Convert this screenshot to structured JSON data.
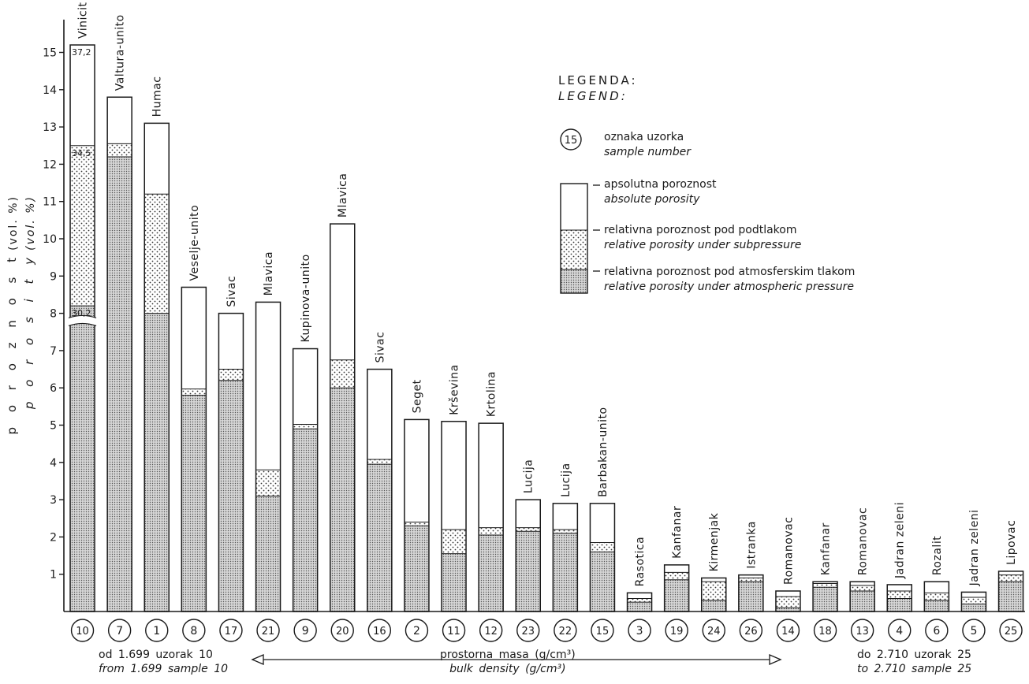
{
  "chart_data": {
    "type": "bar",
    "stacked": true,
    "ylim": [
      0,
      15.5
    ],
    "yticks": [
      1,
      2,
      3,
      4,
      5,
      6,
      7,
      8,
      9,
      10,
      11,
      12,
      13,
      14,
      15
    ],
    "ylabel_hr": "p o r o z n o s t",
    "ylabel_hr_unit": "(vol. %)",
    "ylabel_en": "p o r o s i t y",
    "ylabel_en_unit": "(vol. %)",
    "bars": [
      {
        "sample": "10",
        "name": "Vinicit",
        "atm": 8.2,
        "sub": 12.5,
        "abs": 15.2,
        "broken": true,
        "annot": [
          "37,2",
          "34,5",
          "30,2"
        ]
      },
      {
        "sample": "7",
        "name": "Valtura-unito",
        "atm": 12.2,
        "sub": 12.55,
        "abs": 13.8
      },
      {
        "sample": "1",
        "name": "Humac",
        "atm": 8.0,
        "sub": 11.2,
        "abs": 13.1
      },
      {
        "sample": "8",
        "name": "Veselje-unito",
        "atm": 5.8,
        "sub": 5.97,
        "abs": 8.7
      },
      {
        "sample": "17",
        "name": "Sivac",
        "atm": 6.2,
        "sub": 6.5,
        "abs": 8.0
      },
      {
        "sample": "21",
        "name": "Mlavica",
        "atm": 3.1,
        "sub": 3.8,
        "abs": 8.3
      },
      {
        "sample": "9",
        "name": "Kupinova-unito",
        "atm": 4.9,
        "sub": 5.02,
        "abs": 7.05
      },
      {
        "sample": "20",
        "name": "Mlavica",
        "atm": 6.0,
        "sub": 6.75,
        "abs": 10.4
      },
      {
        "sample": "16",
        "name": "Sivac",
        "atm": 3.95,
        "sub": 4.08,
        "abs": 6.5
      },
      {
        "sample": "2",
        "name": "Seget",
        "atm": 2.3,
        "sub": 2.4,
        "abs": 5.15
      },
      {
        "sample": "11",
        "name": "Krševina",
        "atm": 1.55,
        "sub": 2.2,
        "abs": 5.1
      },
      {
        "sample": "12",
        "name": "Krtolina",
        "atm": 2.05,
        "sub": 2.25,
        "abs": 5.05
      },
      {
        "sample": "23",
        "name": "Lucija",
        "atm": 2.15,
        "sub": 2.25,
        "abs": 3.0
      },
      {
        "sample": "22",
        "name": "Lucija",
        "atm": 2.1,
        "sub": 2.2,
        "abs": 2.9
      },
      {
        "sample": "15",
        "name": "Barbakan-unito",
        "atm": 1.6,
        "sub": 1.85,
        "abs": 2.9
      },
      {
        "sample": "3",
        "name": "Rasotica",
        "atm": 0.25,
        "sub": 0.35,
        "abs": 0.5
      },
      {
        "sample": "19",
        "name": "Kanfanar",
        "atm": 0.85,
        "sub": 1.05,
        "abs": 1.25
      },
      {
        "sample": "24",
        "name": "Kirmenjak",
        "atm": 0.3,
        "sub": 0.8,
        "abs": 0.9
      },
      {
        "sample": "26",
        "name": "Istranka",
        "atm": 0.8,
        "sub": 0.9,
        "abs": 0.98
      },
      {
        "sample": "14",
        "name": "Romanovac",
        "atm": 0.1,
        "sub": 0.4,
        "abs": 0.55
      },
      {
        "sample": "18",
        "name": "Kanfanar",
        "atm": 0.65,
        "sub": 0.75,
        "abs": 0.8
      },
      {
        "sample": "13",
        "name": "Romanovac",
        "atm": 0.55,
        "sub": 0.7,
        "abs": 0.8
      },
      {
        "sample": "4",
        "name": "Jadran zeleni",
        "atm": 0.35,
        "sub": 0.55,
        "abs": 0.72
      },
      {
        "sample": "6",
        "name": "Rozalit",
        "atm": 0.3,
        "sub": 0.5,
        "abs": 0.8
      },
      {
        "sample": "5",
        "name": "Jadran zeleni",
        "atm": 0.2,
        "sub": 0.38,
        "abs": 0.52
      },
      {
        "sample": "25",
        "name": "Lipovac",
        "atm": 0.8,
        "sub": 0.98,
        "abs": 1.08
      }
    ]
  },
  "legend": {
    "title_hr": "LEGENDA:",
    "title_en": "LEGEND:",
    "sample_symbol": "15",
    "sample_hr": "oznaka uzorka",
    "sample_en": "sample number",
    "abs_hr": "apsolutna poroznost",
    "abs_en": "absolute porosity",
    "sub_hr": "relativna poroznost pod podtlakom",
    "sub_en": "relative porosity under subpressure",
    "atm_hr": "relativna poroznost pod atmosferskim tlakom",
    "atm_en": "relative porosity under atmospheric pressure"
  },
  "footer": {
    "left_hr": "od 1.699 uzorak 10",
    "left_en": "from 1.699 sample 10",
    "center_hr": "prostorna masa (g/cm³)",
    "center_en": "bulk density (g/cm³)",
    "right_hr": "do 2.710 uzorak 25",
    "right_en": "to 2.710 sample 25"
  },
  "colors": {
    "ink": "#1a1a1a",
    "dot_fill": "#d8d8d8",
    "open_fill": "#ffffff"
  }
}
